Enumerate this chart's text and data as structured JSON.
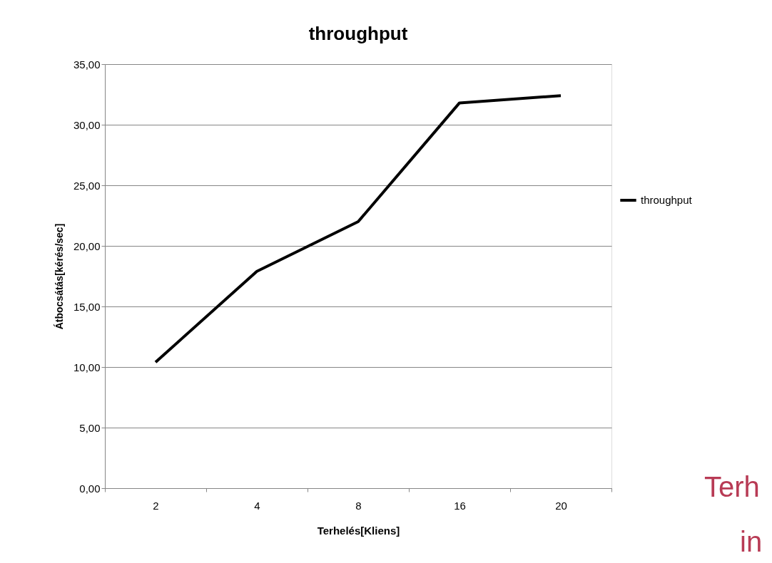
{
  "chart_data": {
    "type": "line",
    "title": "throughput",
    "xlabel": "Terhelés[Kliens]",
    "ylabel": "Átbocsátás[kérés/sec]",
    "categories": [
      "2",
      "4",
      "8",
      "16",
      "20"
    ],
    "series": [
      {
        "name": "throughput",
        "color": "#000000",
        "values": [
          10.4,
          17.9,
          22.0,
          31.8,
          32.4
        ]
      }
    ],
    "ylim": [
      0,
      35
    ],
    "yticks": [
      {
        "value": 0,
        "label": "0,00"
      },
      {
        "value": 5,
        "label": "5,00"
      },
      {
        "value": 10,
        "label": "10,00"
      },
      {
        "value": 15,
        "label": "15,00"
      },
      {
        "value": 20,
        "label": "20,00"
      },
      {
        "value": 25,
        "label": "25,00"
      },
      {
        "value": 30,
        "label": "30,00"
      },
      {
        "value": 35,
        "label": "35,00"
      }
    ],
    "grid": "y",
    "legend": "right",
    "marker": "none",
    "line_style": "solid",
    "annotations": [
      "Terh",
      "in"
    ]
  }
}
